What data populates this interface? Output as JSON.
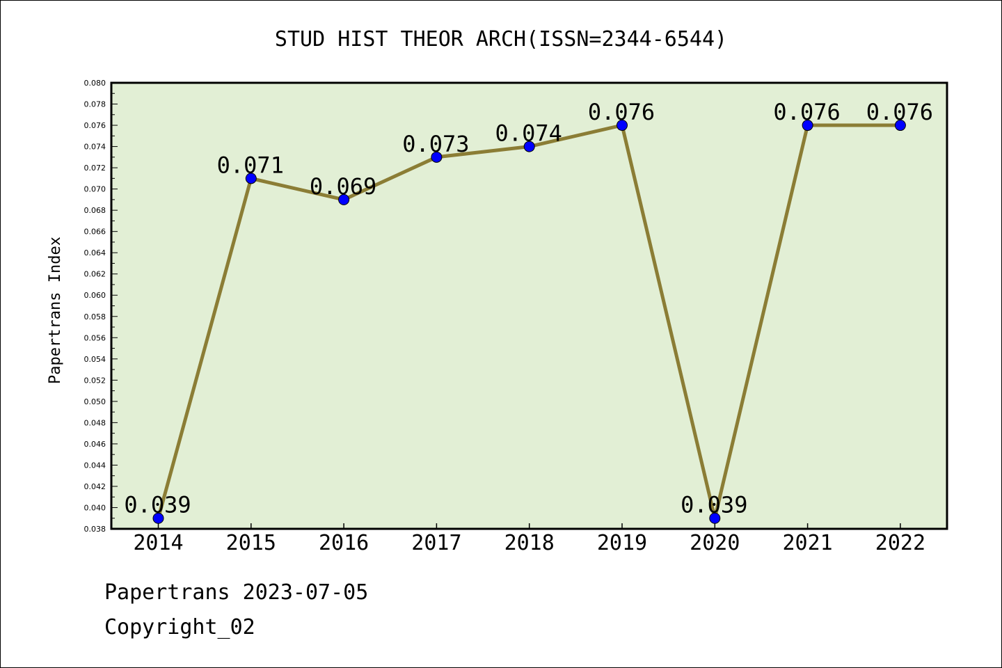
{
  "chart_data": {
    "type": "line",
    "title": "STUD HIST THEOR ARCH(ISSN=2344-6544)",
    "xlabel": "",
    "ylabel": "Papertrans Index",
    "categories": [
      "2014",
      "2015",
      "2016",
      "2017",
      "2018",
      "2019",
      "2020",
      "2021",
      "2022"
    ],
    "series": [
      {
        "values": [
          0.039,
          0.071,
          0.069,
          0.073,
          0.074,
          0.076,
          0.039,
          0.076,
          0.076
        ],
        "labels": [
          "0.039",
          "0.071",
          "0.069",
          "0.073",
          "0.074",
          "0.076",
          "0.039",
          "0.076",
          "0.076"
        ]
      }
    ],
    "ylim": [
      0.038,
      0.08
    ],
    "yticks": [
      "0.038",
      "0.040",
      "0.042",
      "0.044",
      "0.046",
      "0.048",
      "0.050",
      "0.052",
      "0.054",
      "0.056",
      "0.058",
      "0.060",
      "0.062",
      "0.064",
      "0.066",
      "0.068",
      "0.070",
      "0.072",
      "0.074",
      "0.076",
      "0.078",
      "0.080"
    ],
    "grid": false,
    "legend": "none",
    "colors": {
      "plot_background": "#e2efd5",
      "line": "#8b7d35",
      "marker": "#0000ff",
      "axes": "#000000"
    }
  },
  "footer": {
    "line1": "Papertrans 2023-07-05",
    "line2": "Copyright_02"
  }
}
